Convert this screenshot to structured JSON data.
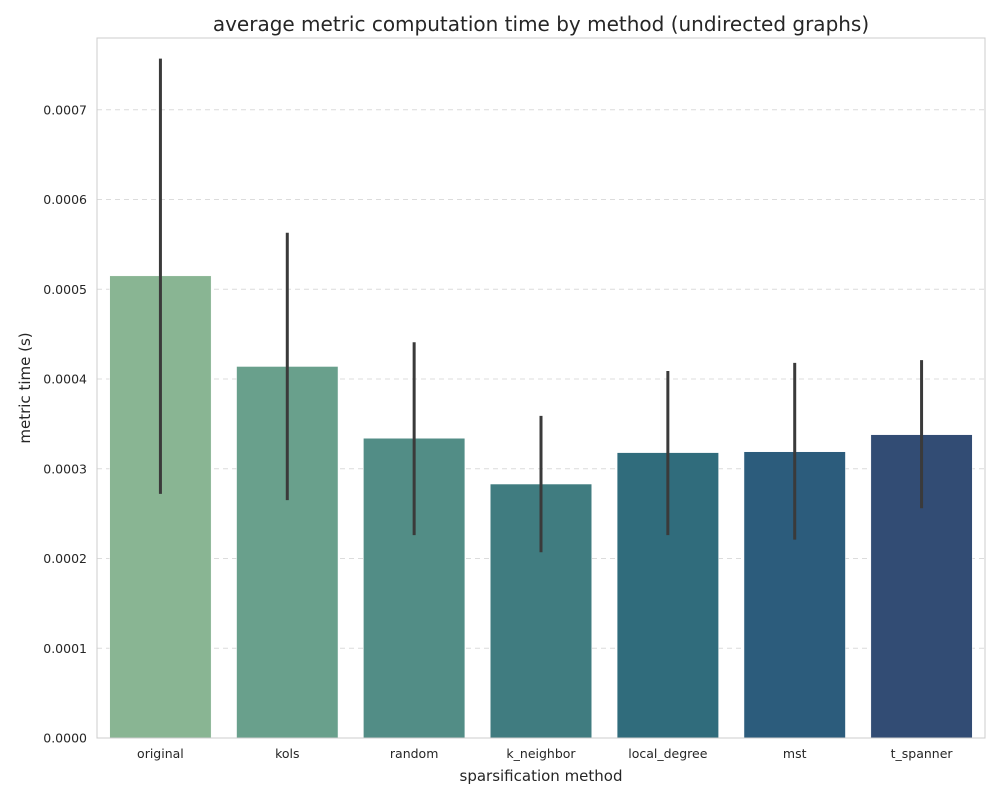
{
  "chart_data": {
    "type": "bar",
    "title": "average metric computation time by method (undirected graphs)",
    "xlabel": "sparsification method",
    "ylabel": "metric time (s)",
    "categories": [
      "original",
      "kols",
      "random",
      "k_neighbor",
      "local_degree",
      "mst",
      "t_spanner"
    ],
    "values": [
      0.000515,
      0.000414,
      0.000334,
      0.000283,
      0.000318,
      0.000319,
      0.000338
    ],
    "error_low": [
      0.000272,
      0.000265,
      0.000226,
      0.000207,
      0.000226,
      0.000221,
      0.000256
    ],
    "error_high": [
      0.000757,
      0.000563,
      0.000441,
      0.000359,
      0.000409,
      0.000418,
      0.000421
    ],
    "colors": [
      "#89b593",
      "#69a08c",
      "#528d86",
      "#407c80",
      "#306c7c",
      "#2c5c7c",
      "#324c74"
    ],
    "errorbar_color": "#3a3a3a",
    "ylim": [
      0,
      0.00078
    ],
    "yticks": [
      0.0,
      0.0001,
      0.0002,
      0.0003,
      0.0004,
      0.0005,
      0.0006,
      0.0007
    ],
    "ytick_labels": [
      "0.0000",
      "0.0001",
      "0.0002",
      "0.0003",
      "0.0004",
      "0.0005",
      "0.0006",
      "0.0007"
    ],
    "grid": "horizontal dashed"
  }
}
